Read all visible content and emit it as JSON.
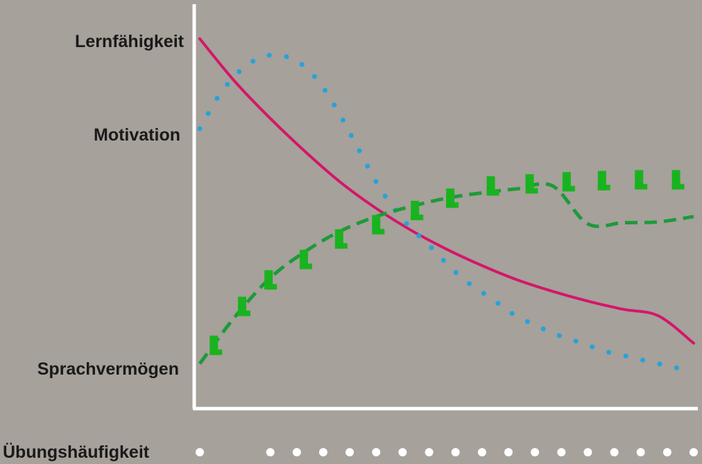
{
  "colors": {
    "background": "#a6a19a",
    "axis": "#ffffff",
    "lernfaehigkeit": "#d4166a",
    "motivation": "#27a2d9",
    "sprachvermoegen": "#1e9a3a",
    "sprachvermoegen_markers": "#19b31f",
    "label_text": "#1a1a1a"
  },
  "chart_data": {
    "type": "line",
    "xlabel": "Übungshäufigkeit",
    "ylabel": "",
    "x_marker_style": "white-dots",
    "xlim": [
      0,
      28
    ],
    "ylim": [
      0,
      100
    ],
    "grid": false,
    "y_labels": [
      {
        "text": "Lernfähigkeit",
        "value": 92
      },
      {
        "text": "Motivation",
        "value": 69
      },
      {
        "text": "Sprachvermögen",
        "value": 10
      }
    ],
    "x_dots": [
      0,
      4,
      5.5,
      7,
      8.5,
      10,
      11.5,
      13,
      14.5,
      16,
      17.5,
      19,
      20.5,
      22,
      23.5,
      25,
      26.5,
      28
    ],
    "series": [
      {
        "label": "Lernfähigkeit",
        "style": "solid",
        "x": [
          0,
          2,
          4,
          6,
          8,
          10,
          12,
          14,
          16,
          18,
          20,
          22,
          24,
          26,
          28
        ],
        "y": [
          90.5,
          80,
          71,
          62.8,
          55.3,
          49,
          43.6,
          39,
          35,
          31.5,
          28.7,
          26.3,
          24.3,
          22.7,
          16
        ]
      },
      {
        "label": "Motivation",
        "style": "dotted",
        "x": [
          0,
          1,
          2,
          3,
          4,
          5,
          6,
          7,
          8,
          9,
          10,
          11,
          12,
          13,
          14,
          15,
          16,
          17,
          18,
          19,
          20,
          21,
          22,
          23,
          24,
          25,
          26,
          27,
          28
        ],
        "y": [
          68.5,
          76,
          81.5,
          85,
          86.5,
          86,
          83.5,
          78.5,
          71.5,
          63.5,
          55.5,
          49,
          44,
          40,
          35.5,
          31.5,
          28.5,
          25.5,
          22.5,
          20.5,
          18.5,
          17,
          15.5,
          14,
          13,
          12,
          11,
          10,
          9.5
        ]
      },
      {
        "label": "Sprachvermögen",
        "style": "dashed",
        "x": [
          0,
          2,
          4,
          6,
          8,
          10,
          12,
          14,
          16,
          18,
          20,
          22,
          24,
          26,
          28
        ],
        "y": [
          11,
          22.5,
          32,
          38.5,
          43.5,
          47,
          49.5,
          51.5,
          52.8,
          53.8,
          54.5,
          45.2,
          45.5,
          45.7,
          47
        ]
      },
      {
        "label": "Sprachvermögen (Marker)",
        "style": "markers",
        "x": [
          0.8,
          2.4,
          3.9,
          5.9,
          7.9,
          10,
          12.2,
          14.2,
          16.5,
          18.7,
          20.8,
          22.8,
          24.9,
          27
        ],
        "y": [
          15.5,
          25,
          31.5,
          36.5,
          41.5,
          45,
          48.5,
          51.5,
          54.5,
          55,
          55.5,
          55.8,
          56,
          56
        ]
      }
    ]
  }
}
